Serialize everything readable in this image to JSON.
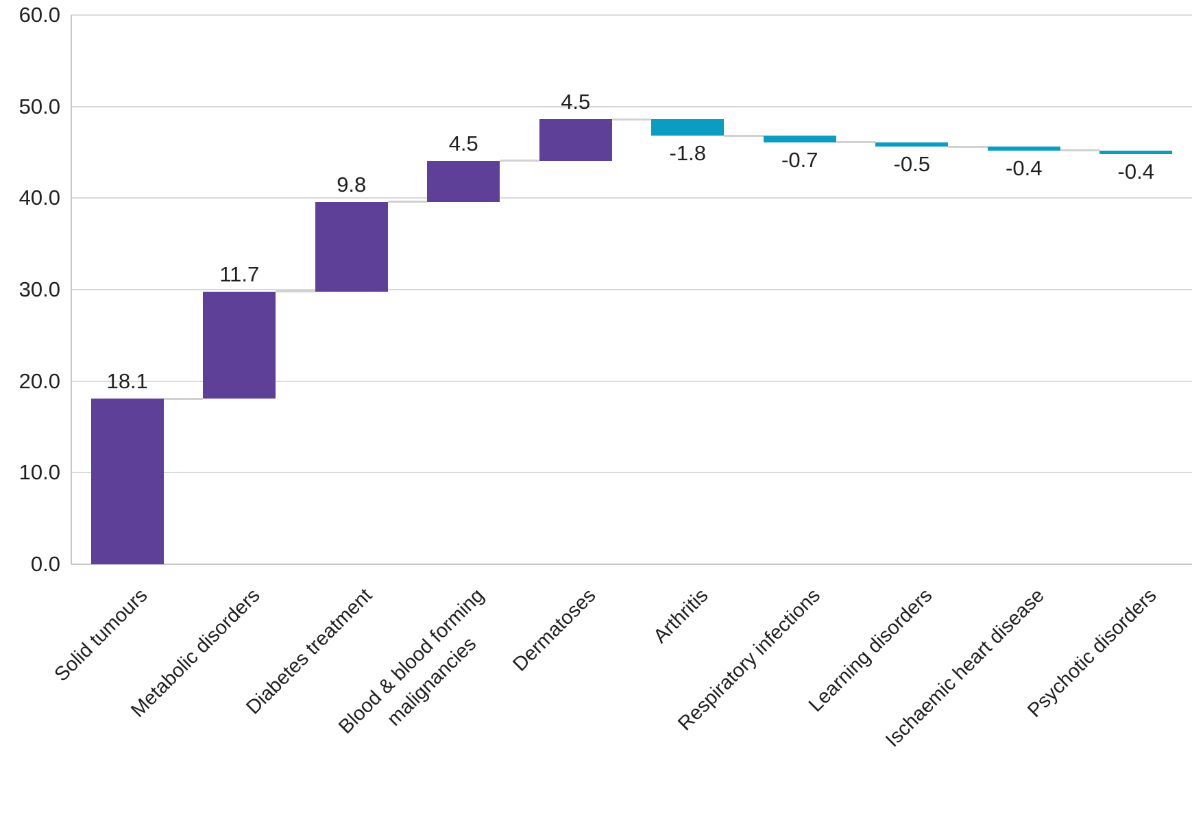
{
  "chart_data": {
    "type": "bar",
    "subtype": "waterfall",
    "title": "",
    "xlabel": "",
    "ylabel": "",
    "categories": [
      "Solid tumours",
      "Metabolic disorders",
      "Diabetes treatment",
      "Blood & blood forming\nmalignancies",
      "Dermatoses",
      "Arthritis",
      "Respiratory infections",
      "Learning disorders",
      "Ischaemic heart disease",
      "Psychotic disorders"
    ],
    "values": [
      18.1,
      11.7,
      9.8,
      4.5,
      4.5,
      -1.8,
      -0.7,
      -0.5,
      -0.4,
      -0.4
    ],
    "cumulative": [
      18.1,
      29.8,
      39.6,
      44.1,
      48.6,
      46.8,
      46.1,
      45.6,
      45.2,
      44.8
    ],
    "data_labels": [
      "18.1",
      "11.7",
      "9.8",
      "4.5",
      "4.5",
      "-1.8",
      "-0.7",
      "-0.5",
      "-0.4",
      "-0.4"
    ],
    "ylim": [
      0,
      60
    ],
    "ytick_step": 10,
    "ytick_labels": [
      "0.0",
      "10.0",
      "20.0",
      "30.0",
      "40.0",
      "50.0",
      "60.0"
    ],
    "grid": true,
    "legend": false,
    "colors": {
      "increase": "#5F4099",
      "decrease": "#0A9CC1",
      "connector": "#D1D1D1",
      "gridline": "#D9D9D9",
      "axis_line": "#C6C6C6",
      "text": "#1F1F1F"
    }
  }
}
